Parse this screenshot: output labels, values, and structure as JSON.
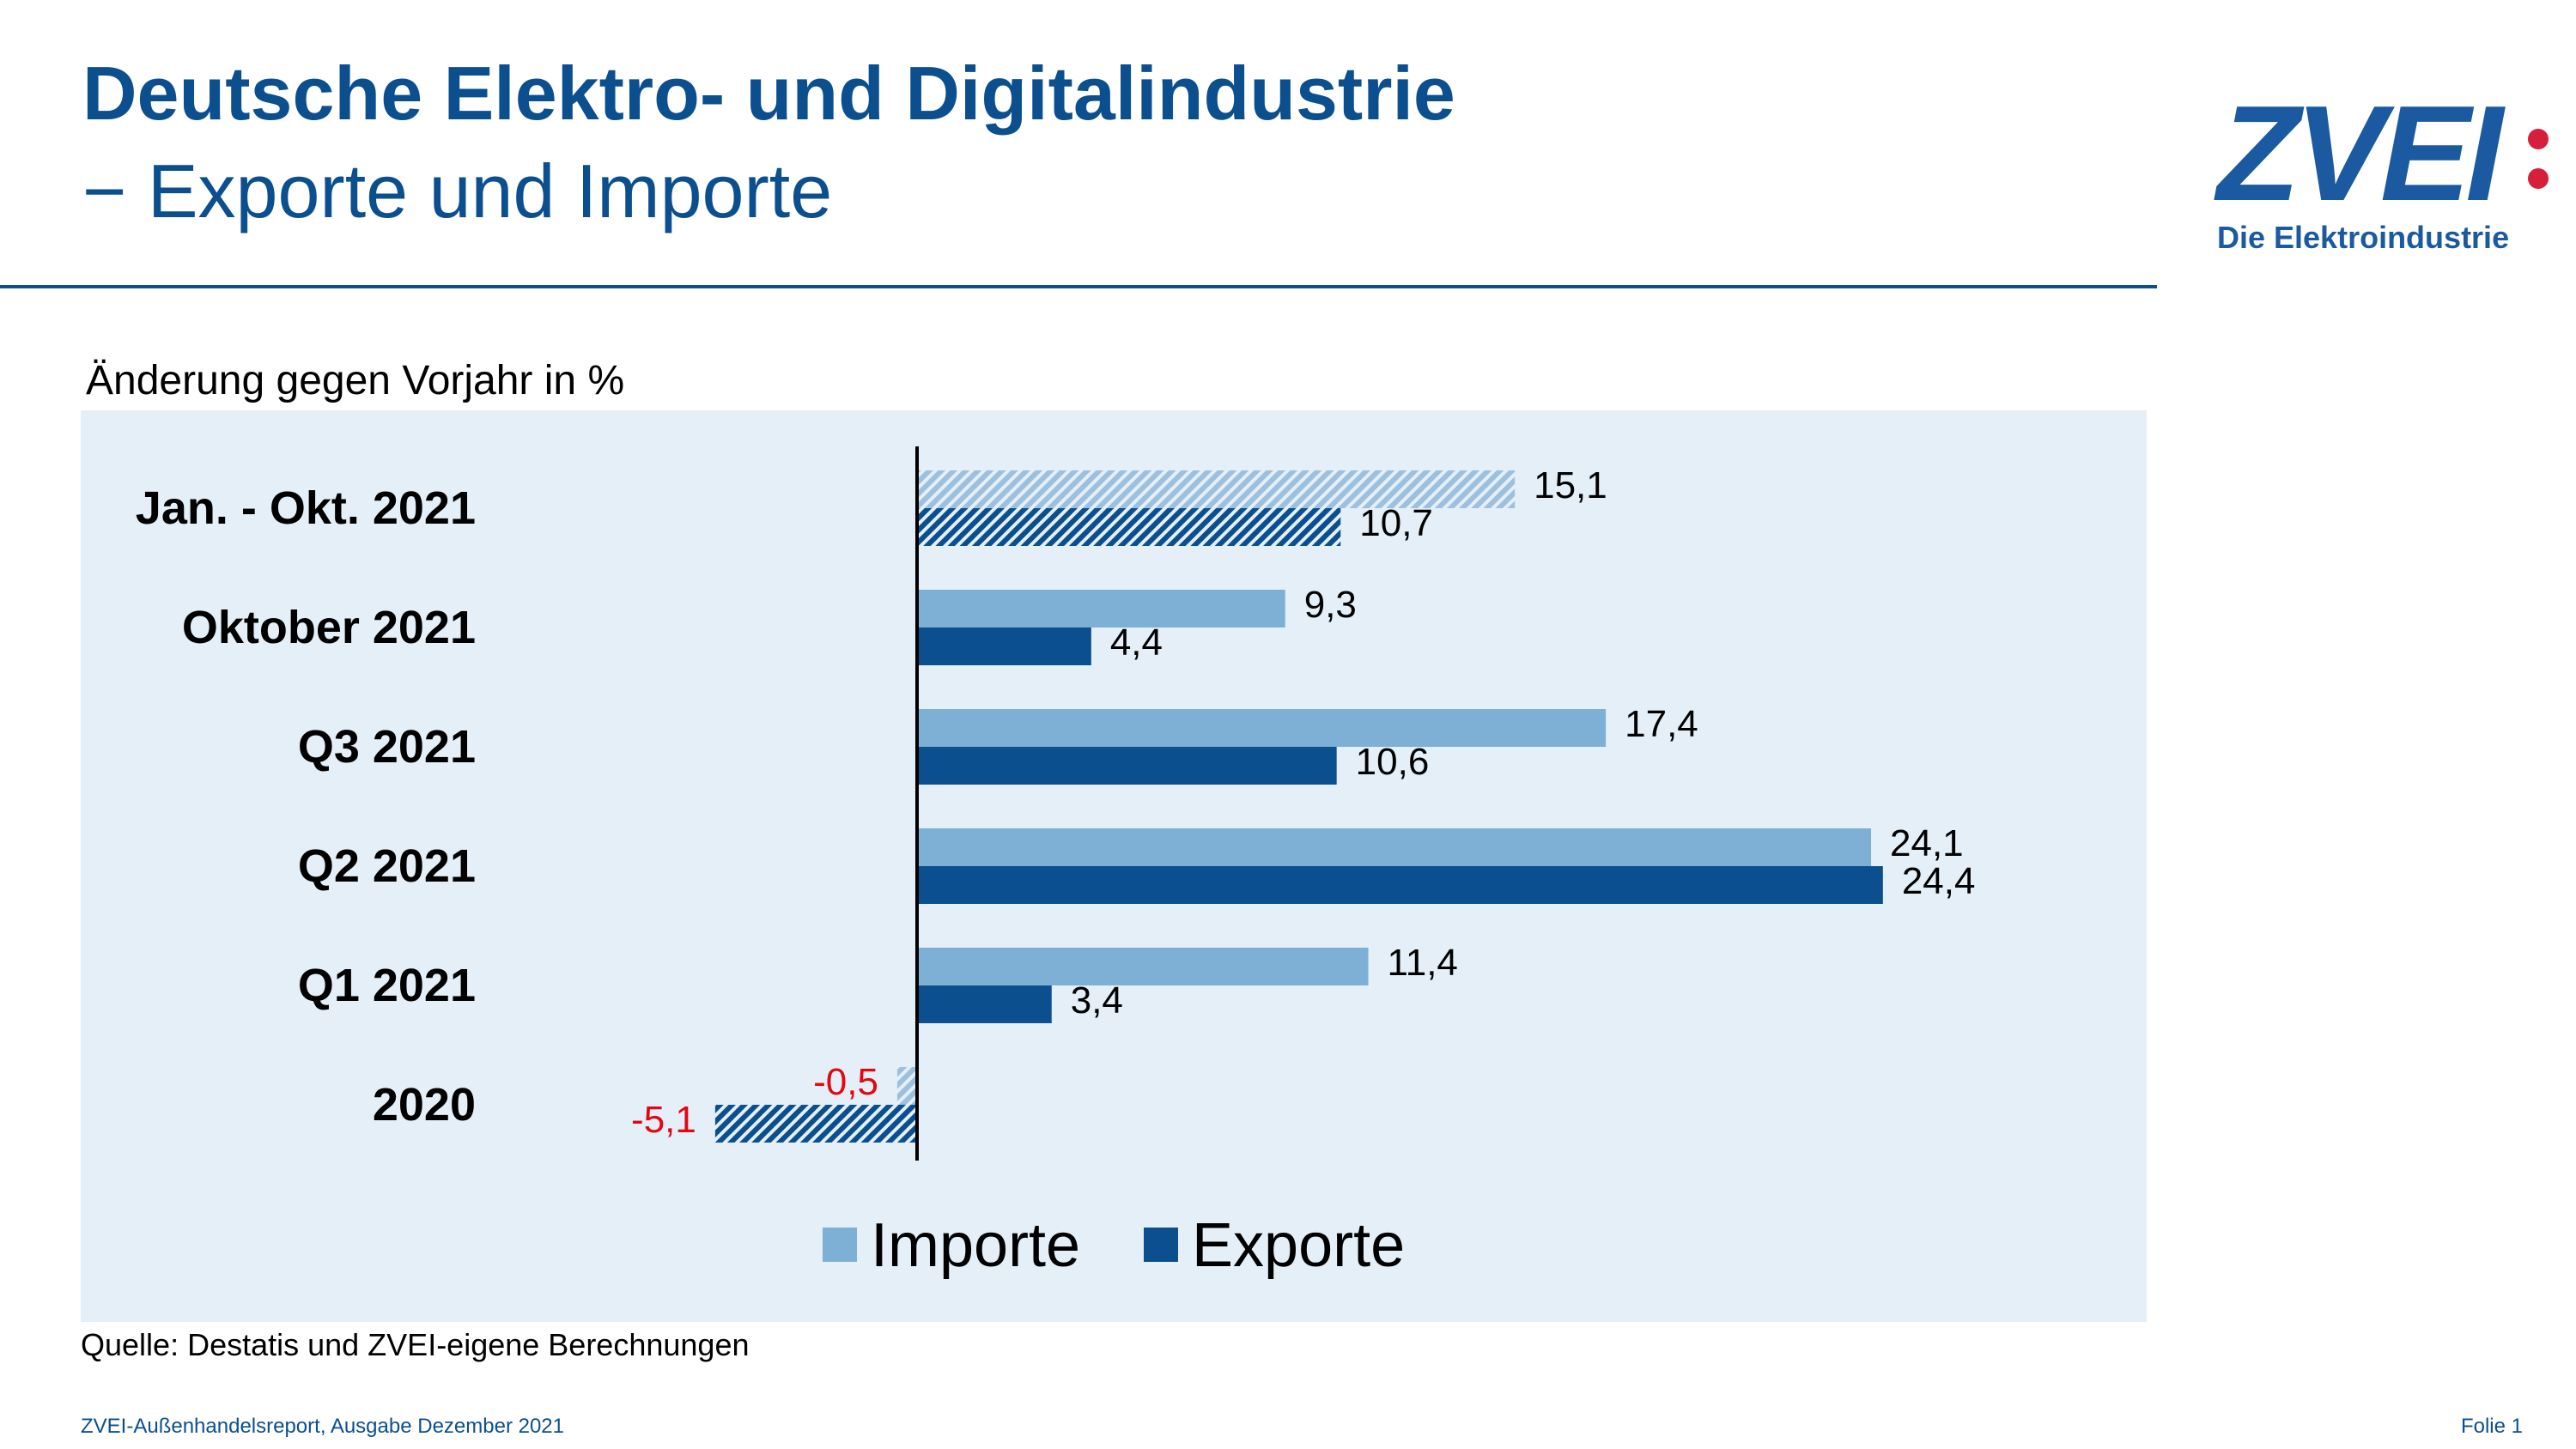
{
  "header": {
    "title_line1": "Deutsche Elektro- und Digitalindustrie",
    "title_line2": "− Exporte und Importe"
  },
  "logo": {
    "text": "ZVEI",
    "tagline": "Die Elektroindustrie"
  },
  "chart_data": {
    "type": "bar",
    "orientation": "horizontal",
    "title": "Änderung gegen Vorjahr in %",
    "categories": [
      "Jan. - Okt. 2021",
      "Oktober 2021",
      "Q3 2021",
      "Q2 2021",
      "Q1 2021",
      "2020"
    ],
    "series": [
      {
        "name": "Importe",
        "color": "#7eb0d6",
        "values": [
          15.1,
          9.3,
          17.4,
          24.1,
          11.4,
          -0.5
        ],
        "labels": [
          "15,1",
          "9,3",
          "17,4",
          "24,1",
          "11,4",
          "-0,5"
        ]
      },
      {
        "name": "Exporte",
        "color": "#0b4f8f",
        "values": [
          10.7,
          4.4,
          10.6,
          24.4,
          3.4,
          -5.1
        ],
        "labels": [
          "10,7",
          "4,4",
          "10,6",
          "24,4",
          "3,4",
          "-5,1"
        ]
      }
    ],
    "hatched_categories": [
      "Jan. - Okt. 2021",
      "2020"
    ],
    "negative_label_color": "#e30613",
    "xlim": [
      -6,
      28
    ],
    "legend": [
      "Importe",
      "Exporte"
    ],
    "legend_position": "bottom-center",
    "grid": false
  },
  "source": "Quelle: Destatis und ZVEI-eigene Berechnungen",
  "footer": {
    "left": "ZVEI-Außenhandelsreport, Ausgabe Dezember 2021",
    "right": "Folie 1"
  }
}
